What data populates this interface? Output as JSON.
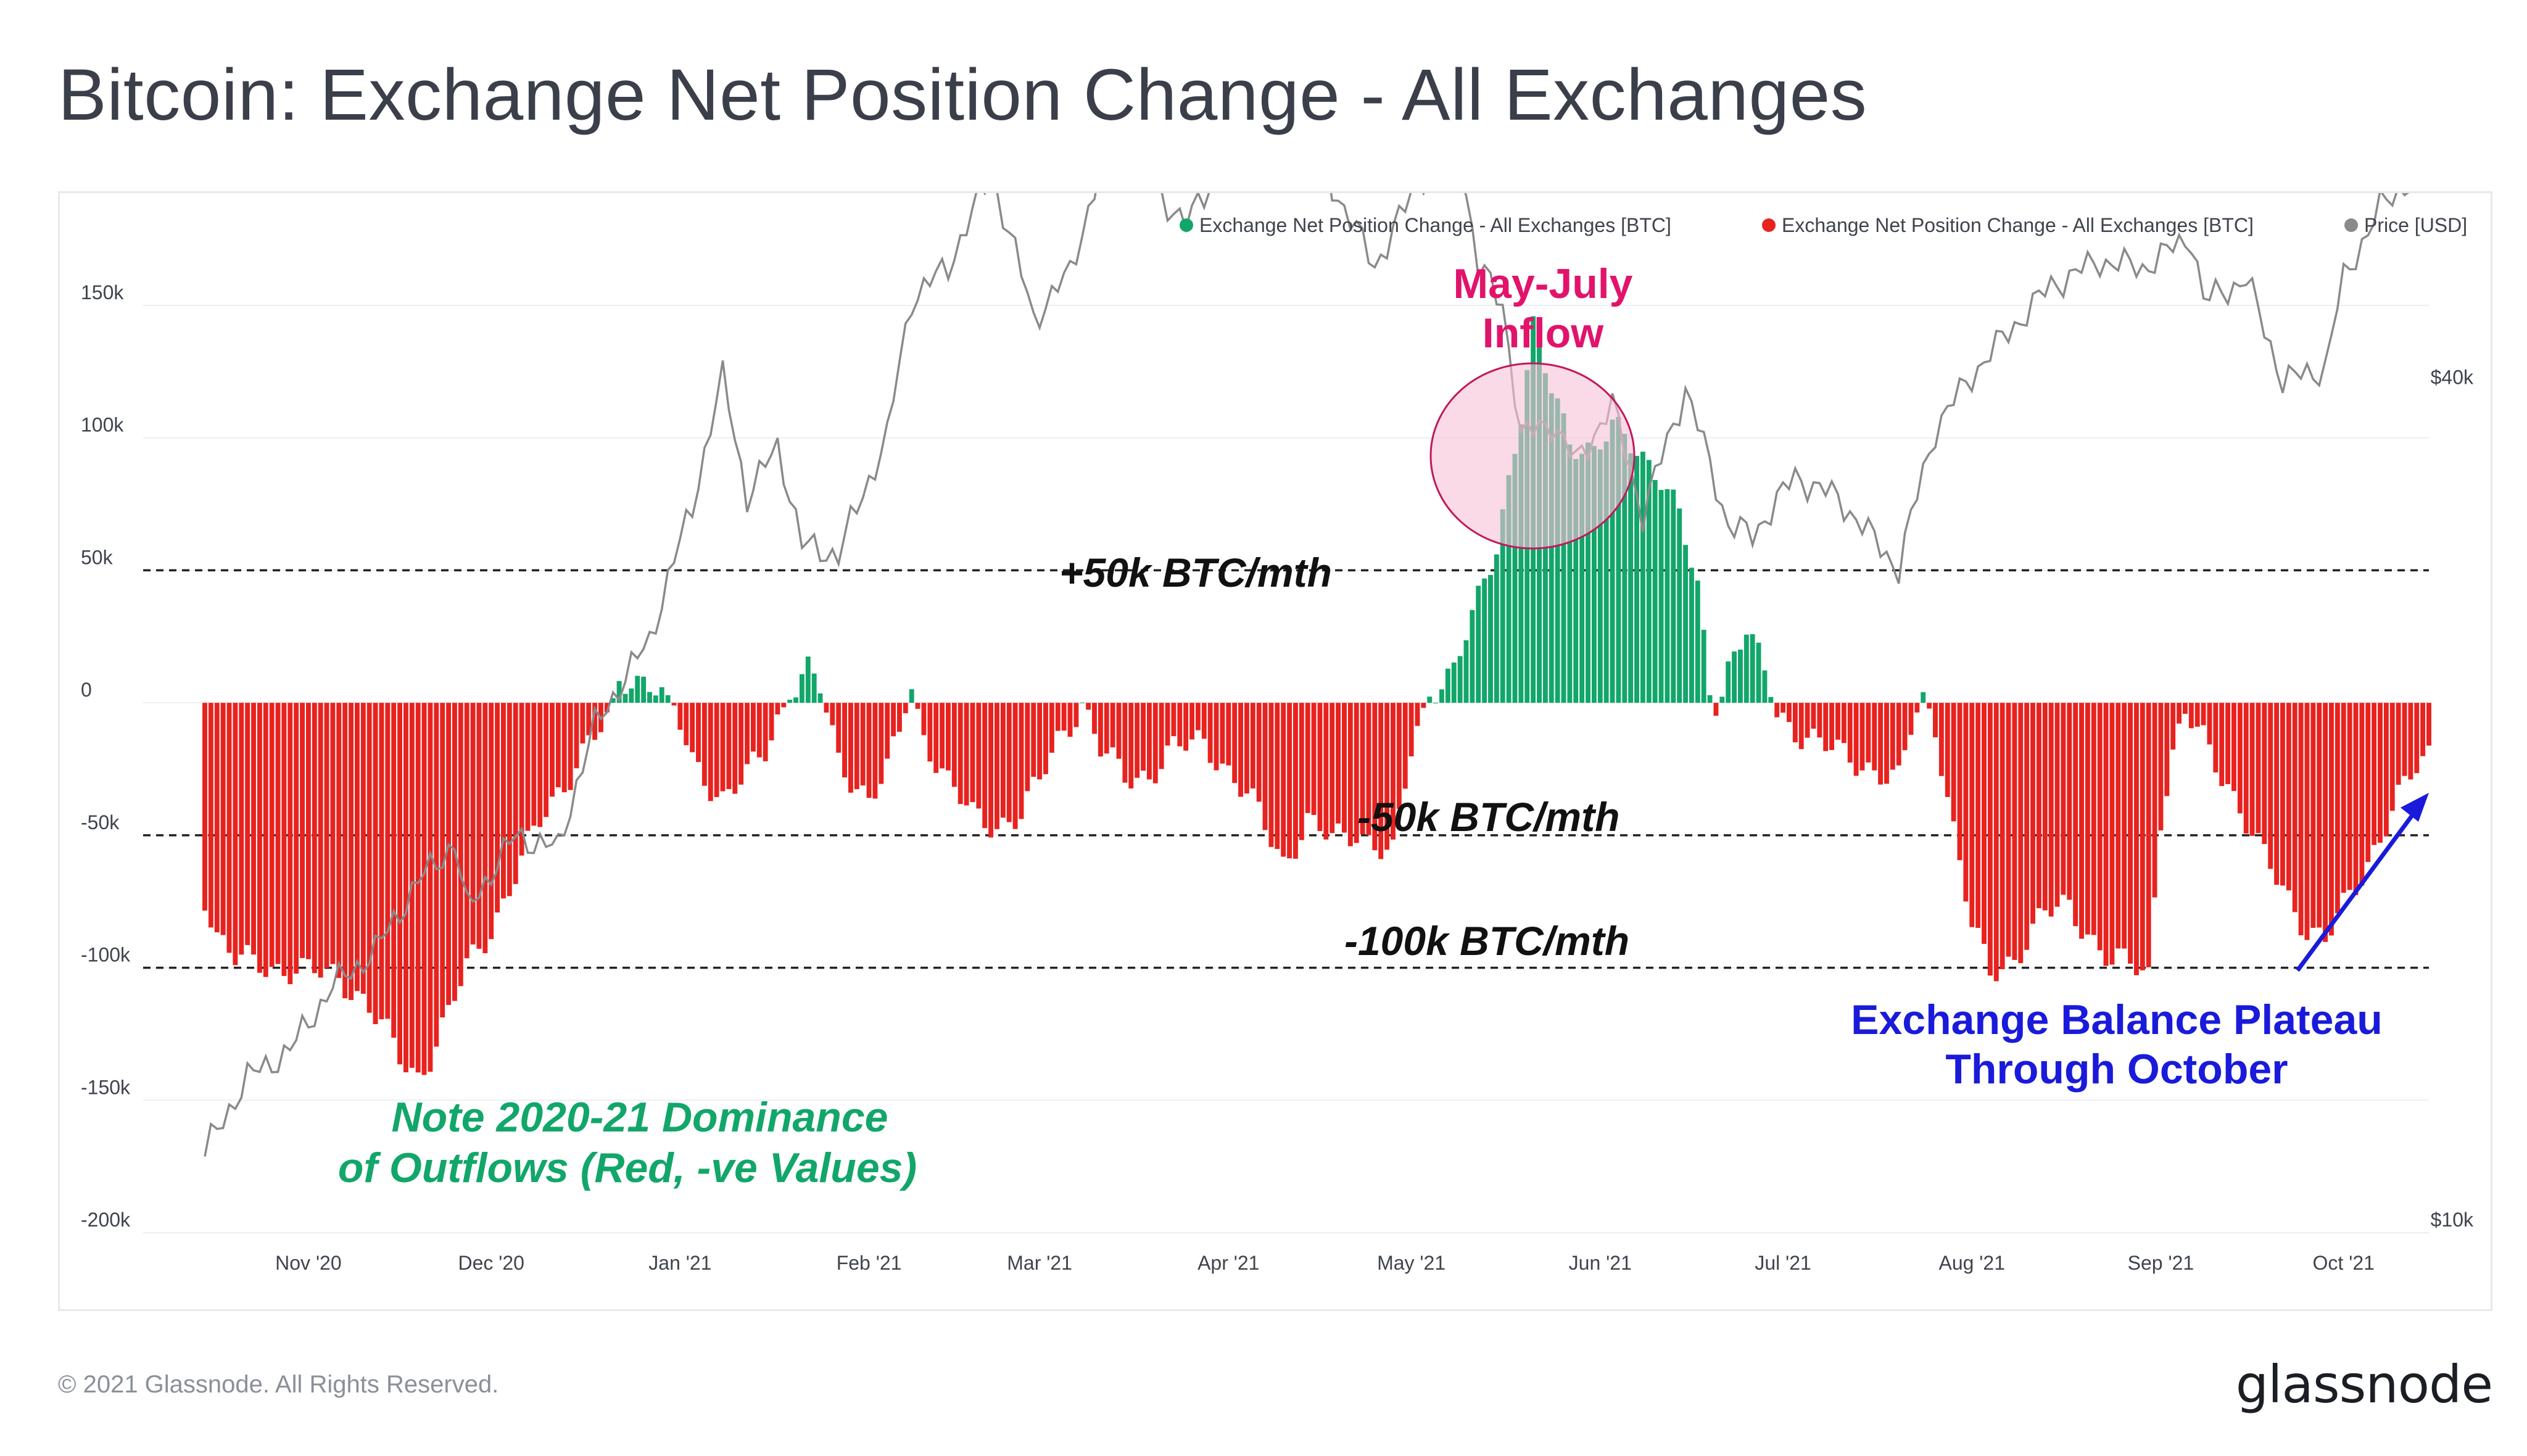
{
  "title": "Bitcoin: Exchange Net Position Change - All Exchanges",
  "footer": "© 2021 Glassnode. All Rights Reserved.",
  "brand": "glassnode",
  "legend": [
    {
      "label": "Exchange Net Position Change - All Exchanges [BTC]",
      "color": "#13a66b"
    },
    {
      "label": "Exchange Net Position Change - All Exchanges [BTC]",
      "color": "#e8231f"
    },
    {
      "label": "Price [USD]",
      "color": "#8a8a8a"
    }
  ],
  "annotations": {
    "may_july_line1": "May-July",
    "may_july_line2": "Inflow",
    "plus50": "+50k BTC/mth",
    "minus50": "-50k BTC/mth",
    "minus100": "-100k BTC/mth",
    "note_line1": "Note 2020-21 Dominance",
    "note_line2": "of Outflows (Red, -ve Values)",
    "plateau_line1": "Exchange Balance Plateau",
    "plateau_line2": "Through October"
  },
  "colors": {
    "inflow": "#13a66b",
    "outflow": "#e8231f",
    "price": "#8a8a8a",
    "may_july_text": "#e2136b",
    "note_text": "#13a66b",
    "plateau_text": "#1a1adb",
    "highlight_fill": "#f7c2d7",
    "highlight_stroke": "#c2185b"
  },
  "chart_data": {
    "type": "bar",
    "ylim": [
      -200000,
      150000
    ],
    "y_ticks": [
      150000,
      100000,
      50000,
      0,
      -50000,
      -100000,
      -150000,
      -200000
    ],
    "y_tick_labels": [
      "150k",
      "100k",
      "50k",
      "0",
      "-50k",
      "-100k",
      "-150k",
      "-200k"
    ],
    "y2_tick_labels": [
      "$40k",
      "$10k"
    ],
    "y2_scale": "log",
    "x_tick_labels": [
      "Nov '20",
      "Dec '20",
      "Jan '21",
      "Feb '21",
      "Mar '21",
      "Apr '21",
      "May '21",
      "Jun '21",
      "Jul '21",
      "Aug '21",
      "Sep '21",
      "Oct '21"
    ],
    "reference_lines": [
      50000,
      -50000,
      -100000
    ],
    "grid": true,
    "legend_position": "top-right",
    "x_range": [
      "2020-10-15",
      "2021-10-15"
    ],
    "netflow_anchors": [
      [
        "2020-10-15",
        -72000
      ],
      [
        "2020-10-17",
        -88000
      ],
      [
        "2020-10-20",
        -97000
      ],
      [
        "2020-10-27",
        -100000
      ],
      [
        "2020-11-02",
        -102000
      ],
      [
        "2020-11-06",
        -103000
      ],
      [
        "2020-11-10",
        -112000
      ],
      [
        "2020-11-13",
        -122000
      ],
      [
        "2020-11-16",
        -134000
      ],
      [
        "2020-11-19",
        -141000
      ],
      [
        "2020-11-21",
        -133000
      ],
      [
        "2020-11-24",
        -118000
      ],
      [
        "2020-11-27",
        -100000
      ],
      [
        "2020-12-01",
        -85000
      ],
      [
        "2020-12-05",
        -65000
      ],
      [
        "2020-12-09",
        -45000
      ],
      [
        "2020-12-13",
        -30000
      ],
      [
        "2020-12-17",
        -15000
      ],
      [
        "2020-12-20",
        -8000
      ],
      [
        "2020-12-22",
        8000
      ],
      [
        "2020-12-26",
        9500
      ],
      [
        "2020-12-28",
        7000
      ],
      [
        "2020-12-31",
        -2000
      ],
      [
        "2021-01-03",
        -22000
      ],
      [
        "2021-01-08",
        -36000
      ],
      [
        "2021-01-12",
        -28000
      ],
      [
        "2021-01-15",
        -18000
      ],
      [
        "2021-01-17",
        -6000
      ],
      [
        "2021-01-20",
        7000
      ],
      [
        "2021-01-22",
        12000
      ],
      [
        "2021-01-24",
        5000
      ],
      [
        "2021-01-27",
        -22000
      ],
      [
        "2021-02-01",
        -36000
      ],
      [
        "2021-02-04",
        -26000
      ],
      [
        "2021-02-06",
        -12000
      ],
      [
        "2021-02-08",
        6000
      ],
      [
        "2021-02-10",
        -12000
      ],
      [
        "2021-02-14",
        -30000
      ],
      [
        "2021-02-18",
        -43000
      ],
      [
        "2021-02-22",
        -46000
      ],
      [
        "2021-02-26",
        -42000
      ],
      [
        "2021-03-01",
        -30000
      ],
      [
        "2021-03-04",
        -14000
      ],
      [
        "2021-03-08",
        0
      ],
      [
        "2021-03-11",
        -18000
      ],
      [
        "2021-03-15",
        -28000
      ],
      [
        "2021-03-19",
        -27000
      ],
      [
        "2021-03-23",
        -18000
      ],
      [
        "2021-03-28",
        -14000
      ],
      [
        "2021-04-01",
        -26000
      ],
      [
        "2021-04-06",
        -42000
      ],
      [
        "2021-04-10",
        -60000
      ],
      [
        "2021-04-14",
        -45000
      ],
      [
        "2021-04-18",
        -52000
      ],
      [
        "2021-04-22",
        -48000
      ],
      [
        "2021-04-26",
        -55000
      ],
      [
        "2021-04-28",
        -58000
      ],
      [
        "2021-05-01",
        -18000
      ],
      [
        "2021-05-04",
        5000
      ],
      [
        "2021-05-08",
        12000
      ],
      [
        "2021-05-12",
        38000
      ],
      [
        "2021-05-15",
        60000
      ],
      [
        "2021-05-17",
        85000
      ],
      [
        "2021-05-19",
        110000
      ],
      [
        "2021-05-21",
        140000
      ],
      [
        "2021-05-24",
        118000
      ],
      [
        "2021-05-27",
        100000
      ],
      [
        "2021-05-31",
        95000
      ],
      [
        "2021-06-03",
        103000
      ],
      [
        "2021-06-07",
        96000
      ],
      [
        "2021-06-11",
        86000
      ],
      [
        "2021-06-14",
        70000
      ],
      [
        "2021-06-17",
        42000
      ],
      [
        "2021-06-19",
        5000
      ],
      [
        "2021-06-20",
        -3000
      ],
      [
        "2021-06-22",
        14000
      ],
      [
        "2021-06-25",
        28000
      ],
      [
        "2021-06-28",
        10000
      ],
      [
        "2021-06-30",
        -4000
      ],
      [
        "2021-07-03",
        -10000
      ],
      [
        "2021-07-09",
        -18000
      ],
      [
        "2021-07-15",
        -24000
      ],
      [
        "2021-07-20",
        -30000
      ],
      [
        "2021-07-22",
        -10000
      ],
      [
        "2021-07-24",
        3000
      ],
      [
        "2021-07-26",
        -8000
      ],
      [
        "2021-07-29",
        -48000
      ],
      [
        "2021-08-01",
        -85000
      ],
      [
        "2021-08-04",
        -102000
      ],
      [
        "2021-08-08",
        -96000
      ],
      [
        "2021-08-13",
        -80000
      ],
      [
        "2021-08-17",
        -76000
      ],
      [
        "2021-08-21",
        -90000
      ],
      [
        "2021-08-24",
        -99000
      ],
      [
        "2021-08-27",
        -98000
      ],
      [
        "2021-08-30",
        -102000
      ],
      [
        "2021-09-01",
        -42000
      ],
      [
        "2021-09-03",
        -20000
      ],
      [
        "2021-09-05",
        -5000
      ],
      [
        "2021-09-08",
        -14000
      ],
      [
        "2021-09-12",
        -30000
      ],
      [
        "2021-09-17",
        -55000
      ],
      [
        "2021-09-21",
        -70000
      ],
      [
        "2021-09-25",
        -85000
      ],
      [
        "2021-09-28",
        -90000
      ],
      [
        "2021-10-01",
        -78000
      ],
      [
        "2021-10-05",
        -60000
      ],
      [
        "2021-10-09",
        -40000
      ],
      [
        "2021-10-13",
        -25000
      ],
      [
        "2021-10-15",
        -20000
      ]
    ],
    "price_anchors": [
      [
        "2020-10-15",
        11400
      ],
      [
        "2020-10-22",
        12900
      ],
      [
        "2020-10-29",
        13500
      ],
      [
        "2020-11-05",
        15000
      ],
      [
        "2020-11-12",
        15900
      ],
      [
        "2020-11-19",
        17800
      ],
      [
        "2020-11-25",
        19000
      ],
      [
        "2020-11-27",
        17000
      ],
      [
        "2020-12-05",
        19200
      ],
      [
        "2020-12-12",
        18800
      ],
      [
        "2020-12-18",
        23000
      ],
      [
        "2020-12-27",
        26500
      ],
      [
        "2021-01-03",
        33000
      ],
      [
        "2021-01-08",
        40800
      ],
      [
        "2021-01-12",
        33500
      ],
      [
        "2021-01-17",
        36500
      ],
      [
        "2021-01-21",
        31000
      ],
      [
        "2021-01-27",
        30500
      ],
      [
        "2021-02-04",
        37000
      ],
      [
        "2021-02-08",
        46500
      ],
      [
        "2021-02-14",
        49000
      ],
      [
        "2021-02-21",
        57000
      ],
      [
        "2021-02-28",
        45000
      ],
      [
        "2021-03-06",
        48500
      ],
      [
        "2021-03-13",
        61000
      ],
      [
        "2021-03-18",
        57000
      ],
      [
        "2021-03-25",
        52500
      ],
      [
        "2021-04-01",
        59000
      ],
      [
        "2021-04-08",
        58000
      ],
      [
        "2021-04-14",
        63500
      ],
      [
        "2021-04-18",
        56000
      ],
      [
        "2021-04-25",
        49000
      ],
      [
        "2021-05-03",
        57000
      ],
      [
        "2021-05-09",
        58500
      ],
      [
        "2021-05-12",
        49000
      ],
      [
        "2021-05-16",
        46000
      ],
      [
        "2021-05-19",
        37000
      ],
      [
        "2021-05-24",
        38000
      ],
      [
        "2021-05-28",
        35500
      ],
      [
        "2021-06-03",
        39000
      ],
      [
        "2021-06-08",
        32500
      ],
      [
        "2021-06-15",
        40000
      ],
      [
        "2021-06-22",
        32000
      ],
      [
        "2021-06-26",
        31500
      ],
      [
        "2021-07-03",
        34700
      ],
      [
        "2021-07-10",
        33500
      ],
      [
        "2021-07-14",
        32000
      ],
      [
        "2021-07-20",
        29800
      ],
      [
        "2021-07-26",
        37500
      ],
      [
        "2021-08-01",
        41000
      ],
      [
        "2021-08-08",
        44500
      ],
      [
        "2021-08-14",
        47500
      ],
      [
        "2021-08-22",
        49500
      ],
      [
        "2021-08-29",
        48900
      ],
      [
        "2021-09-06",
        51500
      ],
      [
        "2021-09-08",
        46300
      ],
      [
        "2021-09-15",
        48000
      ],
      [
        "2021-09-21",
        40600
      ],
      [
        "2021-09-28",
        41500
      ],
      [
        "2021-10-01",
        48000
      ],
      [
        "2021-10-07",
        54000
      ],
      [
        "2021-10-12",
        56500
      ],
      [
        "2021-10-15",
        61000
      ]
    ]
  }
}
